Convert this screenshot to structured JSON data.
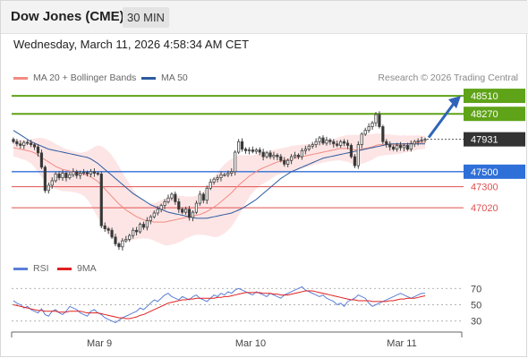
{
  "header": {
    "title": "Dow Jones (CME)",
    "timeframe": "30 MIN",
    "datetime": "Wednesday, March 11, 2026 4:58:34 AM CET"
  },
  "legend": {
    "ma20": {
      "label": "MA 20 + Bollinger Bands",
      "color": "#f28b82"
    },
    "ma50": {
      "label": "MA 50",
      "color": "#2c5aa0"
    },
    "copyright": "Research © 2026 Trading Central"
  },
  "rsi_legend": {
    "rsi": {
      "label": "RSI",
      "color": "#5b7fd6"
    },
    "ma9": {
      "label": "9MA",
      "color": "#e02020"
    }
  },
  "chart_data": [
    {
      "type": "candlestick",
      "title": "Dow Jones (CME) 30 MIN",
      "x_ticks": [
        "Mar 9",
        "Mar 10",
        "Mar 11"
      ],
      "price_levels": [
        {
          "value": 48510,
          "label": "48510",
          "kind": "target",
          "color": "#5fa318"
        },
        {
          "value": 48270,
          "label": "48270",
          "kind": "target",
          "color": "#5fa318"
        },
        {
          "value": 47931,
          "label": "47931",
          "kind": "last",
          "color": "#333333"
        },
        {
          "value": 47500,
          "label": "47500",
          "kind": "pivot",
          "color": "#2f6fd8"
        },
        {
          "value": 47300,
          "label": "47300",
          "kind": "support",
          "color": "#e05050"
        },
        {
          "value": 47020,
          "label": "47020",
          "kind": "support",
          "color": "#e05050"
        }
      ],
      "ylim": [
        46390,
        48630
      ],
      "closes": [
        47900,
        47870,
        47850,
        47890,
        47880,
        47860,
        47830,
        47750,
        47560,
        47250,
        47320,
        47380,
        47470,
        47420,
        47480,
        47420,
        47460,
        47500,
        47450,
        47480,
        47490,
        47470,
        47500,
        47480,
        47470,
        46780,
        46740,
        46720,
        46630,
        46540,
        46500,
        46580,
        46600,
        46650,
        46720,
        46700,
        46800,
        46760,
        46850,
        46900,
        46950,
        47000,
        47050,
        47100,
        47150,
        47200,
        47100,
        47000,
        46960,
        47000,
        46890,
        46960,
        47080,
        47200,
        47120,
        47280,
        47360,
        47400,
        47420,
        47460,
        47460,
        47480,
        47500,
        47760,
        47900,
        47800,
        47780,
        47790,
        47770,
        47790,
        47760,
        47700,
        47750,
        47700,
        47720,
        47700,
        47650,
        47600,
        47650,
        47700,
        47720,
        47700,
        47780,
        47800,
        47840,
        47860,
        47900,
        47950,
        47880,
        47920,
        47900,
        47870,
        47850,
        47900,
        47880,
        47850,
        47700,
        47580,
        47860,
        48000,
        48050,
        48100,
        48150,
        48260,
        48100,
        47900,
        47860,
        47830,
        47800,
        47850,
        47820,
        47850,
        47800,
        47870,
        47900,
        47910,
        47920,
        47931
      ],
      "ma20": [
        47820,
        47810,
        47800,
        47790,
        47780,
        47770,
        47750,
        47720,
        47690,
        47660,
        47630,
        47600,
        47570,
        47550,
        47530,
        47520,
        47510,
        47500,
        47490,
        47480,
        47470,
        47450,
        47430,
        47400,
        47370,
        47320,
        47270,
        47220,
        47170,
        47120,
        47070,
        47030,
        46990,
        46960,
        46930,
        46900,
        46880,
        46860,
        46850,
        46840,
        46830,
        46830,
        46830,
        46830,
        46840,
        46850,
        46860,
        46870,
        46880,
        46890,
        46900,
        46910,
        46920,
        46930,
        46950,
        46970,
        47000,
        47030,
        47060,
        47100,
        47140,
        47180,
        47220,
        47270,
        47320,
        47360,
        47400,
        47440,
        47470,
        47500,
        47530,
        47550,
        47570,
        47590,
        47610,
        47630,
        47640,
        47650,
        47660,
        47670,
        47680,
        47690,
        47700,
        47710,
        47720,
        47730,
        47740,
        47750,
        47760,
        47770,
        47780,
        47790,
        47800,
        47810,
        47810,
        47810,
        47800,
        47790,
        47790,
        47800,
        47810,
        47820,
        47830,
        47850,
        47860,
        47860,
        47860,
        47860,
        47860,
        47860,
        47860,
        47870,
        47870,
        47880,
        47880,
        47890,
        47890,
        47890
      ],
      "ma20_band_width": [
        120,
        120,
        125,
        130,
        140,
        160,
        190,
        230,
        260,
        280,
        290,
        300,
        300,
        295,
        290,
        280,
        275,
        270,
        270,
        275,
        290,
        320,
        370,
        430,
        480,
        520,
        540,
        550,
        545,
        530,
        500,
        460,
        420,
        380,
        340,
        300,
        270,
        250,
        240,
        240,
        250,
        270,
        290,
        310,
        320,
        320,
        320,
        310,
        300,
        280,
        270,
        260,
        260,
        270,
        290,
        320,
        360,
        400,
        430,
        450,
        460,
        460,
        450,
        430,
        400,
        360,
        320,
        280,
        250,
        230,
        220,
        210,
        200,
        190,
        180,
        170,
        170,
        170,
        170,
        170,
        170,
        165,
        160,
        155,
        150,
        145,
        140,
        140,
        140,
        140,
        140,
        145,
        150,
        160,
        170,
        180,
        190,
        200,
        200,
        195,
        190,
        180,
        170,
        160,
        150,
        145,
        140,
        135,
        130,
        125,
        120,
        115,
        110,
        105,
        100,
        95,
        90,
        90
      ],
      "ma50": [
        48050,
        48020,
        47990,
        47960,
        47930,
        47900,
        47880,
        47860,
        47840,
        47820,
        47800,
        47790,
        47780,
        47770,
        47760,
        47750,
        47740,
        47730,
        47720,
        47710,
        47700,
        47690,
        47670,
        47640,
        47610,
        47570,
        47530,
        47490,
        47450,
        47410,
        47370,
        47330,
        47290,
        47250,
        47210,
        47180,
        47150,
        47120,
        47090,
        47060,
        47040,
        47020,
        47000,
        46980,
        46960,
        46950,
        46940,
        46930,
        46920,
        46910,
        46900,
        46890,
        46880,
        46880,
        46880,
        46880,
        46890,
        46900,
        46910,
        46920,
        46930,
        46940,
        46950,
        46970,
        46990,
        47010,
        47040,
        47070,
        47100,
        47130,
        47170,
        47210,
        47250,
        47290,
        47330,
        47370,
        47410,
        47440,
        47470,
        47500,
        47520,
        47540,
        47560,
        47580,
        47600,
        47620,
        47640,
        47660,
        47680,
        47690,
        47700,
        47710,
        47720,
        47730,
        47740,
        47750,
        47760,
        47770,
        47780,
        47790,
        47800,
        47810,
        47820,
        47830,
        47840,
        47850,
        47860,
        47870,
        47870,
        47870,
        47870,
        47870,
        47870,
        47870,
        47870,
        47870,
        47870,
        47870
      ]
    },
    {
      "type": "line",
      "title": "RSI",
      "yticks": [
        70,
        50,
        30
      ],
      "ylim": [
        22,
        78
      ],
      "series": [
        {
          "name": "RSI",
          "values": [
            55,
            52,
            50,
            46,
            48,
            44,
            42,
            40,
            45,
            38,
            36,
            42,
            44,
            40,
            38,
            42,
            48,
            46,
            44,
            40,
            38,
            36,
            42,
            44,
            40,
            38,
            34,
            32,
            30,
            28,
            31,
            34,
            36,
            38,
            40,
            42,
            46,
            44,
            48,
            52,
            56,
            54,
            58,
            62,
            64,
            60,
            58,
            56,
            60,
            58,
            56,
            60,
            62,
            58,
            56,
            54,
            58,
            62,
            60,
            64,
            62,
            66,
            64,
            68,
            70,
            68,
            66,
            64,
            62,
            66,
            64,
            62,
            60,
            64,
            62,
            60,
            58,
            62,
            64,
            66,
            68,
            70,
            72,
            68,
            66,
            64,
            62,
            60,
            62,
            58,
            56,
            54,
            50,
            52,
            48,
            54,
            56,
            58,
            62,
            60,
            58,
            52,
            48,
            50,
            52,
            54,
            56,
            58,
            60,
            62,
            64,
            62,
            60,
            58,
            60,
            62,
            64,
            64
          ]
        },
        {
          "name": "9MA",
          "values": [
            50,
            49,
            48,
            47,
            46,
            45,
            44,
            43,
            43,
            42,
            42,
            42,
            42,
            41,
            41,
            41,
            42,
            42,
            42,
            42,
            41,
            40,
            40,
            40,
            40,
            39,
            38,
            37,
            36,
            35,
            34,
            34,
            33,
            33,
            34,
            35,
            37,
            38,
            40,
            42,
            44,
            46,
            48,
            50,
            52,
            53,
            54,
            55,
            56,
            56,
            57,
            57,
            58,
            58,
            58,
            58,
            58,
            58,
            59,
            59,
            60,
            60,
            61,
            62,
            63,
            64,
            65,
            65,
            65,
            65,
            65,
            64,
            64,
            64,
            63,
            63,
            62,
            62,
            62,
            63,
            64,
            65,
            66,
            67,
            67,
            67,
            66,
            65,
            64,
            63,
            62,
            61,
            60,
            59,
            58,
            57,
            56,
            56,
            55,
            55,
            55,
            55,
            54,
            54,
            54,
            54,
            54,
            55,
            55,
            56,
            57,
            57,
            58,
            58,
            58,
            59,
            60,
            61
          ]
        }
      ]
    }
  ]
}
